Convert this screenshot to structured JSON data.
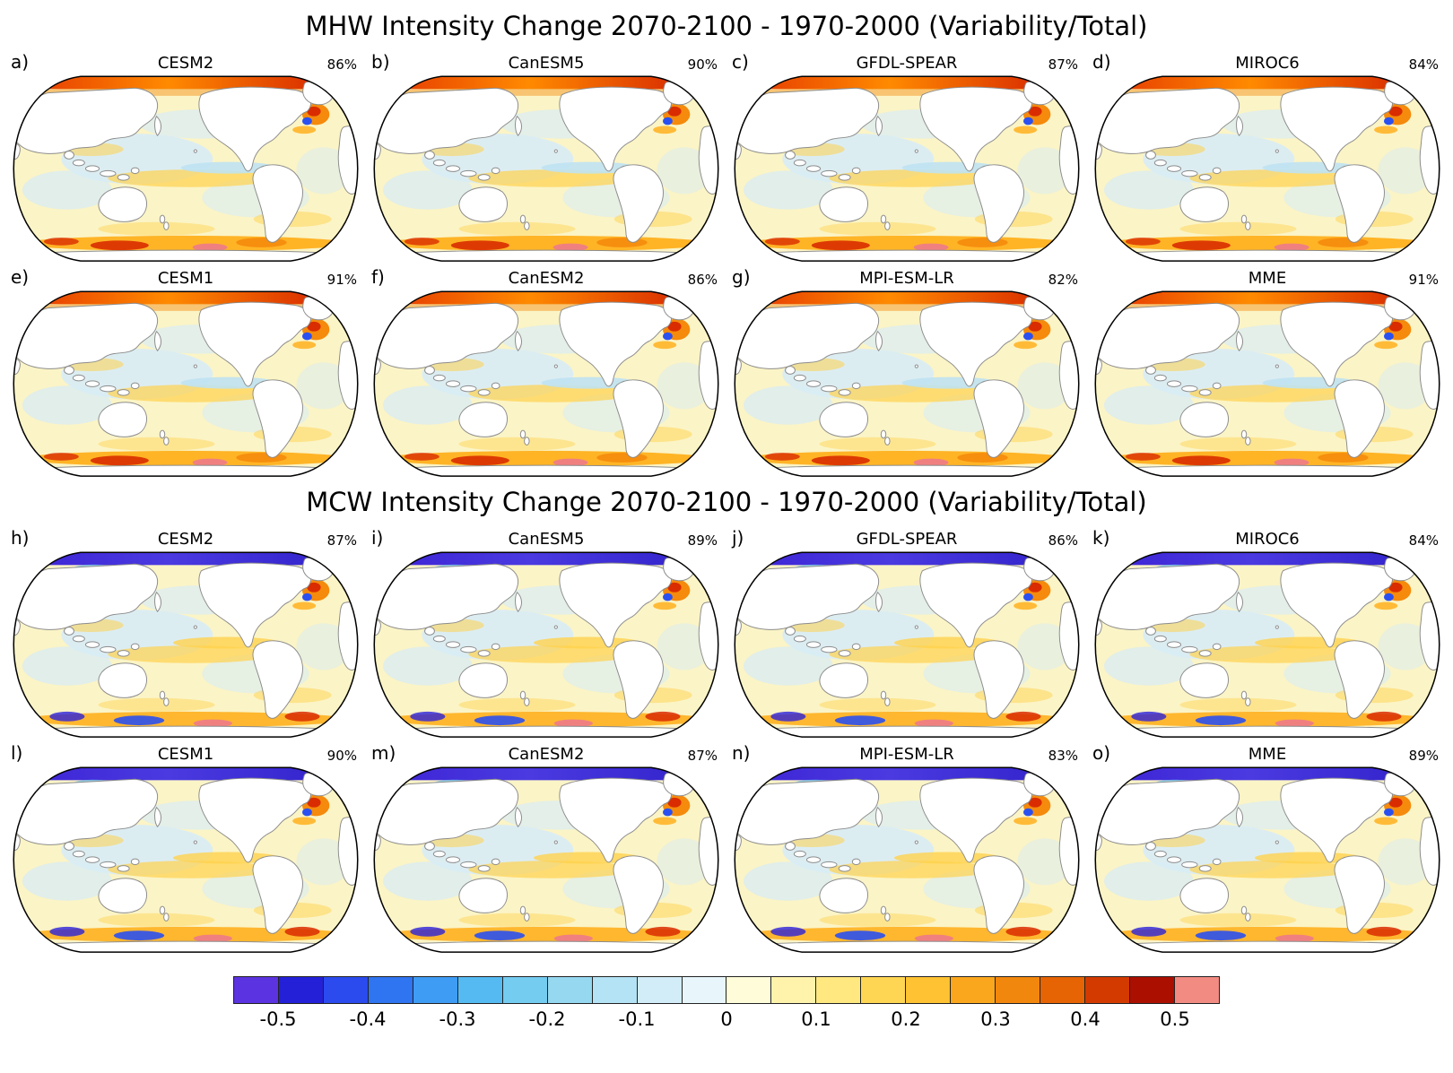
{
  "chart_data": {
    "type": "heatmap",
    "description": "Two 4x2 grids of global Robinson-projection maps of marine heatwave (MHW) and marine coldwave (MCW) intensity change (2070-2100 minus 1970-2000, variability/total ratio) for different climate models, each annotated with a percent of variance value, sharing one discrete diverging colorbar from below -0.5 to above 0.5.",
    "sections": [
      {
        "title": "MHW Intensity Change 2070-2100 - 1970-2000 (Variability/Total)",
        "variant": "mhw",
        "panels": [
          {
            "letter": "a)",
            "model": "CESM2",
            "percent": "86%"
          },
          {
            "letter": "b)",
            "model": "CanESM5",
            "percent": "90%"
          },
          {
            "letter": "c)",
            "model": "GFDL-SPEAR",
            "percent": "87%"
          },
          {
            "letter": "d)",
            "model": "MIROC6",
            "percent": "84%"
          },
          {
            "letter": "e)",
            "model": "CESM1",
            "percent": "91%"
          },
          {
            "letter": "f)",
            "model": "CanESM2",
            "percent": "86%"
          },
          {
            "letter": "g)",
            "model": "MPI-ESM-LR",
            "percent": "82%"
          },
          {
            "letter": "",
            "model": "MME",
            "percent": "91%"
          }
        ]
      },
      {
        "title": "MCW Intensity Change 2070-2100 - 1970-2000 (Variability/Total)",
        "variant": "mcw",
        "panels": [
          {
            "letter": "h)",
            "model": "CESM2",
            "percent": "87%"
          },
          {
            "letter": "i)",
            "model": "CanESM5",
            "percent": "89%"
          },
          {
            "letter": "j)",
            "model": "GFDL-SPEAR",
            "percent": "86%"
          },
          {
            "letter": "k)",
            "model": "MIROC6",
            "percent": "84%"
          },
          {
            "letter": "l)",
            "model": "CESM1",
            "percent": "90%"
          },
          {
            "letter": "m)",
            "model": "CanESM2",
            "percent": "87%"
          },
          {
            "letter": "n)",
            "model": "MPI-ESM-LR",
            "percent": "83%"
          },
          {
            "letter": "o)",
            "model": "MME",
            "percent": "89%"
          }
        ]
      }
    ],
    "colorbar": {
      "tick_labels": [
        "-0.5",
        "-0.4",
        "-0.3",
        "-0.2",
        "-0.1",
        "0",
        "0.1",
        "0.2",
        "0.3",
        "0.4",
        "0.5"
      ],
      "value_step": 0.05,
      "range_labeled": [
        -0.5,
        0.5
      ],
      "segment_colors": [
        "#5b33e0",
        "#2420d8",
        "#2b4bee",
        "#2f74f0",
        "#3f9cf4",
        "#55baf2",
        "#74ccf1",
        "#95d8f0",
        "#b3e3f4",
        "#d2edf8",
        "#e8f6fb",
        "#fffcda",
        "#fff3ac",
        "#ffe87f",
        "#ffd653",
        "#ffc232",
        "#fba71d",
        "#f2870d",
        "#e66404",
        "#d33a00",
        "#ab0f00",
        "#f28b82"
      ]
    },
    "map_palette": {
      "land": "#ffffff",
      "land_stroke": "#8c8c8c",
      "outline": "#000000",
      "ocean_warm": "#fbf4c6",
      "ocean_cool": "#d8ecf6",
      "cool_mid": "#bfe2f2",
      "gold": "#ffd24d",
      "amber": "#ffb01e",
      "orange": "#f58a0c",
      "red": "#d92c00",
      "dark_red": "#a80000",
      "salmon": "#f08080",
      "blue": "#2b50f0",
      "deep_blue": "#2a20dc",
      "teal": "#55bdf0",
      "arctic_mhw": [
        "#e23000",
        "#ff8a00",
        "#cf1400"
      ],
      "arctic_mcw": [
        "#3c22d4",
        "#4a3ae0",
        "#2f1fc8"
      ]
    }
  }
}
